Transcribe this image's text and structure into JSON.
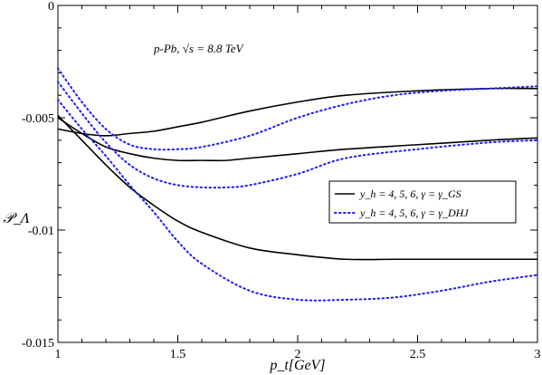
{
  "chart_data": {
    "type": "line",
    "title": "",
    "annotation": "p-Pb, √s = 8.8 TeV",
    "xlabel": "p_t[GeV]",
    "ylabel": "𝒫_Λ",
    "xlim": [
      1,
      3
    ],
    "ylim": [
      -0.015,
      0
    ],
    "x_ticks": [
      1,
      1.5,
      2,
      2.5,
      3
    ],
    "x_tick_labels": [
      "1",
      "1.5",
      "2",
      "2.5",
      "3"
    ],
    "y_ticks": [
      0,
      -0.005,
      -0.01,
      -0.015
    ],
    "y_tick_labels": [
      "0",
      "-0.005",
      "-0.01",
      "-0.015"
    ],
    "grid": false,
    "legend_position": "center-right",
    "legend": [
      {
        "label": "y_h = 4, 5, 6,  γ = γ_GS",
        "style": "solid",
        "color": "#000000"
      },
      {
        "label": "y_h = 4, 5, 6,  γ = γ_DHJ",
        "style": "dotted",
        "color": "#1a1aff"
      }
    ],
    "series": [
      {
        "group": "GS",
        "style": "solid",
        "color": "#000000",
        "x": [
          1.0,
          1.1,
          1.2,
          1.3,
          1.4,
          1.5,
          1.6,
          1.8,
          2.0,
          2.2,
          2.5,
          2.8,
          3.0
        ],
        "y": [
          -0.0055,
          -0.0057,
          -0.0058,
          -0.0057,
          -0.0056,
          -0.0054,
          -0.0052,
          -0.0047,
          -0.0043,
          -0.004,
          -0.0038,
          -0.0037,
          -0.0037
        ]
      },
      {
        "group": "GS",
        "style": "solid",
        "color": "#000000",
        "x": [
          1.0,
          1.1,
          1.2,
          1.3,
          1.4,
          1.5,
          1.6,
          1.7,
          1.8,
          2.0,
          2.2,
          2.5,
          2.8,
          3.0
        ],
        "y": [
          -0.005,
          -0.0057,
          -0.0063,
          -0.0066,
          -0.0068,
          -0.0069,
          -0.0069,
          -0.0069,
          -0.0068,
          -0.0066,
          -0.0064,
          -0.0062,
          -0.006,
          -0.0059
        ]
      },
      {
        "group": "GS",
        "style": "solid",
        "color": "#000000",
        "x": [
          1.0,
          1.1,
          1.2,
          1.3,
          1.4,
          1.5,
          1.6,
          1.8,
          2.0,
          2.2,
          2.4,
          2.6,
          2.8,
          3.0
        ],
        "y": [
          -0.0049,
          -0.006,
          -0.0071,
          -0.0081,
          -0.0089,
          -0.0096,
          -0.0101,
          -0.0108,
          -0.0111,
          -0.0113,
          -0.0113,
          -0.0113,
          -0.0113,
          -0.0113
        ]
      },
      {
        "group": "DHJ",
        "style": "dotted",
        "color": "#1a1aff",
        "x": [
          1.0,
          1.1,
          1.2,
          1.3,
          1.4,
          1.5,
          1.6,
          1.8,
          2.0,
          2.2,
          2.4,
          2.6,
          2.8,
          3.0
        ],
        "y": [
          -0.0028,
          -0.0043,
          -0.0055,
          -0.0062,
          -0.0064,
          -0.0064,
          -0.0063,
          -0.0058,
          -0.005,
          -0.0044,
          -0.004,
          -0.0038,
          -0.0037,
          -0.0036
        ]
      },
      {
        "group": "DHJ",
        "style": "dotted",
        "color": "#1a1aff",
        "x": [
          1.0,
          1.1,
          1.2,
          1.3,
          1.4,
          1.5,
          1.6,
          1.7,
          1.8,
          2.0,
          2.2,
          2.5,
          2.8,
          3.0
        ],
        "y": [
          -0.0034,
          -0.0048,
          -0.0061,
          -0.0071,
          -0.0077,
          -0.008,
          -0.0081,
          -0.0081,
          -0.008,
          -0.0075,
          -0.0068,
          -0.0064,
          -0.0061,
          -0.006
        ]
      },
      {
        "group": "DHJ",
        "style": "dotted",
        "color": "#1a1aff",
        "x": [
          1.0,
          1.1,
          1.2,
          1.3,
          1.4,
          1.5,
          1.6,
          1.8,
          2.0,
          2.2,
          2.4,
          2.6,
          2.8,
          3.0
        ],
        "y": [
          -0.0042,
          -0.0055,
          -0.0067,
          -0.008,
          -0.0092,
          -0.0105,
          -0.0115,
          -0.0127,
          -0.0131,
          -0.0131,
          -0.013,
          -0.0127,
          -0.0123,
          -0.012
        ]
      }
    ]
  }
}
